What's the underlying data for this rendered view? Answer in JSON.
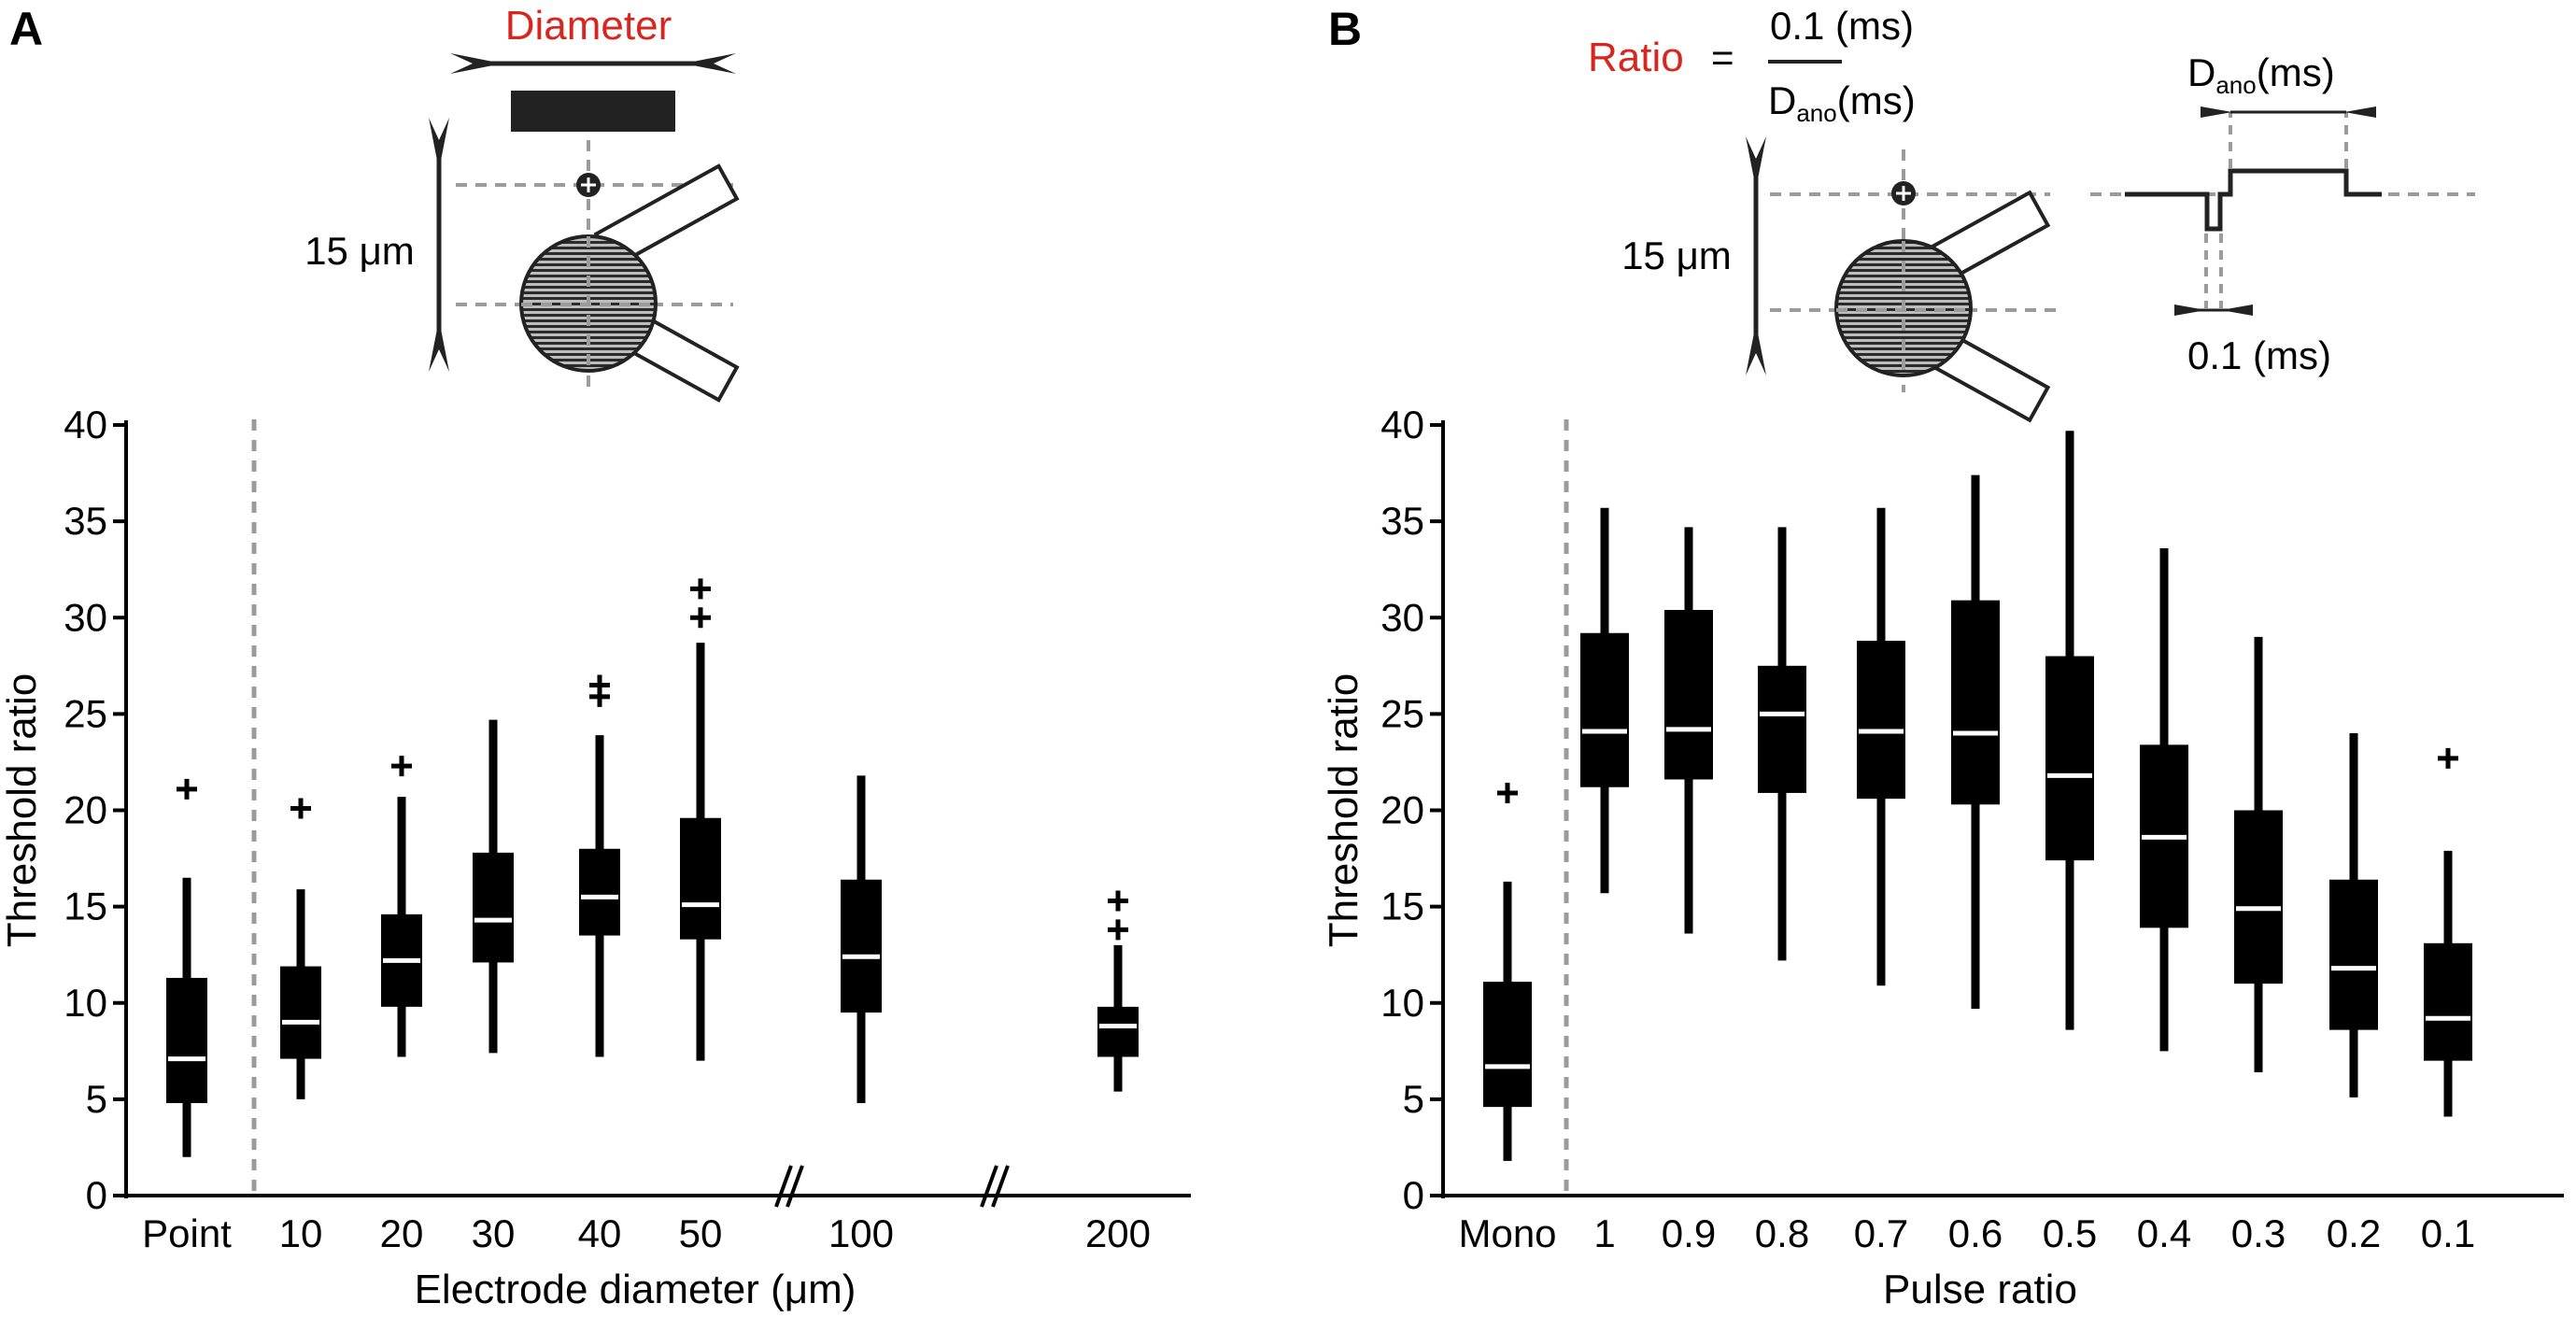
{
  "panels": {
    "A": {
      "label": "A",
      "diagram": {
        "title": "Diameter",
        "scale_label": "15 μm"
      }
    },
    "B": {
      "label": "B",
      "diagram": {
        "ratio_word": "Ratio",
        "equals": "=",
        "numerator": "0.1 (ms)",
        "denominator_main": "D",
        "denominator_sub": "ano",
        "denominator_unit": "(ms)",
        "scale_label": "15 μm",
        "pulse_top_main": "D",
        "pulse_top_sub": "ano",
        "pulse_top_unit": "(ms)",
        "pulse_bottom": "0.1 (ms)"
      }
    }
  },
  "colors": {
    "box": "#000000",
    "median": "#ffffff",
    "accent_red": "#d7261e",
    "dashed": "#9b9b9b"
  },
  "chart_data": [
    {
      "type": "box",
      "panel": "A",
      "xlabel": "Electrode diameter (μm)",
      "ylabel": "Threshold ratio",
      "ylim": [
        0,
        40
      ],
      "yticks": [
        0,
        5,
        10,
        15,
        20,
        25,
        30,
        35,
        40
      ],
      "axis_break_between": [
        [
          "50",
          "100"
        ],
        [
          "100",
          "200"
        ]
      ],
      "categories": [
        "Point",
        "10",
        "20",
        "30",
        "40",
        "50",
        "100",
        "200"
      ],
      "boxes": [
        {
          "category": "Point",
          "whisker_low": 2.0,
          "q1": 4.8,
          "median": 7.1,
          "q3": 11.3,
          "whisker_high": 16.5,
          "outliers": [
            21.1
          ]
        },
        {
          "category": "10",
          "whisker_low": 5.0,
          "q1": 7.1,
          "median": 9.0,
          "q3": 11.9,
          "whisker_high": 15.9,
          "outliers": [
            20.1
          ]
        },
        {
          "category": "20",
          "whisker_low": 7.2,
          "q1": 9.8,
          "median": 12.2,
          "q3": 14.6,
          "whisker_high": 20.7,
          "outliers": [
            22.3
          ]
        },
        {
          "category": "30",
          "whisker_low": 7.4,
          "q1": 12.1,
          "median": 14.3,
          "q3": 17.8,
          "whisker_high": 24.7,
          "outliers": []
        },
        {
          "category": "40",
          "whisker_low": 7.2,
          "q1": 13.5,
          "median": 15.5,
          "q3": 18.0,
          "whisker_high": 23.9,
          "outliers": [
            25.9,
            26.5
          ]
        },
        {
          "category": "50",
          "whisker_low": 7.0,
          "q1": 13.3,
          "median": 15.1,
          "q3": 19.6,
          "whisker_high": 28.7,
          "outliers": [
            30.0,
            31.5
          ]
        },
        {
          "category": "100",
          "whisker_low": 4.8,
          "q1": 9.5,
          "median": 12.4,
          "q3": 16.4,
          "whisker_high": 21.8,
          "outliers": []
        },
        {
          "category": "200",
          "whisker_low": 5.4,
          "q1": 7.2,
          "median": 8.8,
          "q3": 9.8,
          "whisker_high": 13.0,
          "outliers": [
            13.8,
            15.3
          ]
        }
      ]
    },
    {
      "type": "box",
      "panel": "B",
      "xlabel": "Pulse ratio",
      "ylabel": "Threshold ratio",
      "ylim": [
        0,
        40
      ],
      "yticks": [
        0,
        5,
        10,
        15,
        20,
        25,
        30,
        35,
        40
      ],
      "categories": [
        "Mono",
        "1",
        "0.9",
        "0.8",
        "0.7",
        "0.6",
        "0.5",
        "0.4",
        "0.3",
        "0.2",
        "0.1"
      ],
      "boxes": [
        {
          "category": "Mono",
          "whisker_low": 1.8,
          "q1": 4.6,
          "median": 6.7,
          "q3": 11.1,
          "whisker_high": 16.3,
          "outliers": [
            20.9
          ]
        },
        {
          "category": "1",
          "whisker_low": 15.7,
          "q1": 21.2,
          "median": 24.1,
          "q3": 29.2,
          "whisker_high": 35.7,
          "outliers": []
        },
        {
          "category": "0.9",
          "whisker_low": 13.6,
          "q1": 21.6,
          "median": 24.2,
          "q3": 30.4,
          "whisker_high": 34.7,
          "outliers": []
        },
        {
          "category": "0.8",
          "whisker_low": 12.2,
          "q1": 20.9,
          "median": 25.0,
          "q3": 27.5,
          "whisker_high": 34.7,
          "outliers": []
        },
        {
          "category": "0.7",
          "whisker_low": 10.9,
          "q1": 20.6,
          "median": 24.1,
          "q3": 28.8,
          "whisker_high": 35.7,
          "outliers": []
        },
        {
          "category": "0.6",
          "whisker_low": 9.7,
          "q1": 20.3,
          "median": 24.0,
          "q3": 30.9,
          "whisker_high": 37.4,
          "outliers": []
        },
        {
          "category": "0.5",
          "whisker_low": 8.6,
          "q1": 17.4,
          "median": 21.8,
          "q3": 28.0,
          "whisker_high": 39.7,
          "outliers": []
        },
        {
          "category": "0.4",
          "whisker_low": 7.5,
          "q1": 13.9,
          "median": 18.6,
          "q3": 23.4,
          "whisker_high": 33.6,
          "outliers": []
        },
        {
          "category": "0.3",
          "whisker_low": 6.4,
          "q1": 11.0,
          "median": 14.9,
          "q3": 20.0,
          "whisker_high": 29.0,
          "outliers": []
        },
        {
          "category": "0.2",
          "whisker_low": 5.1,
          "q1": 8.6,
          "median": 11.8,
          "q3": 16.4,
          "whisker_high": 24.0,
          "outliers": []
        },
        {
          "category": "0.1",
          "whisker_low": 4.1,
          "q1": 7.0,
          "median": 9.2,
          "q3": 13.1,
          "whisker_high": 17.9,
          "outliers": [
            22.7
          ]
        }
      ]
    }
  ]
}
